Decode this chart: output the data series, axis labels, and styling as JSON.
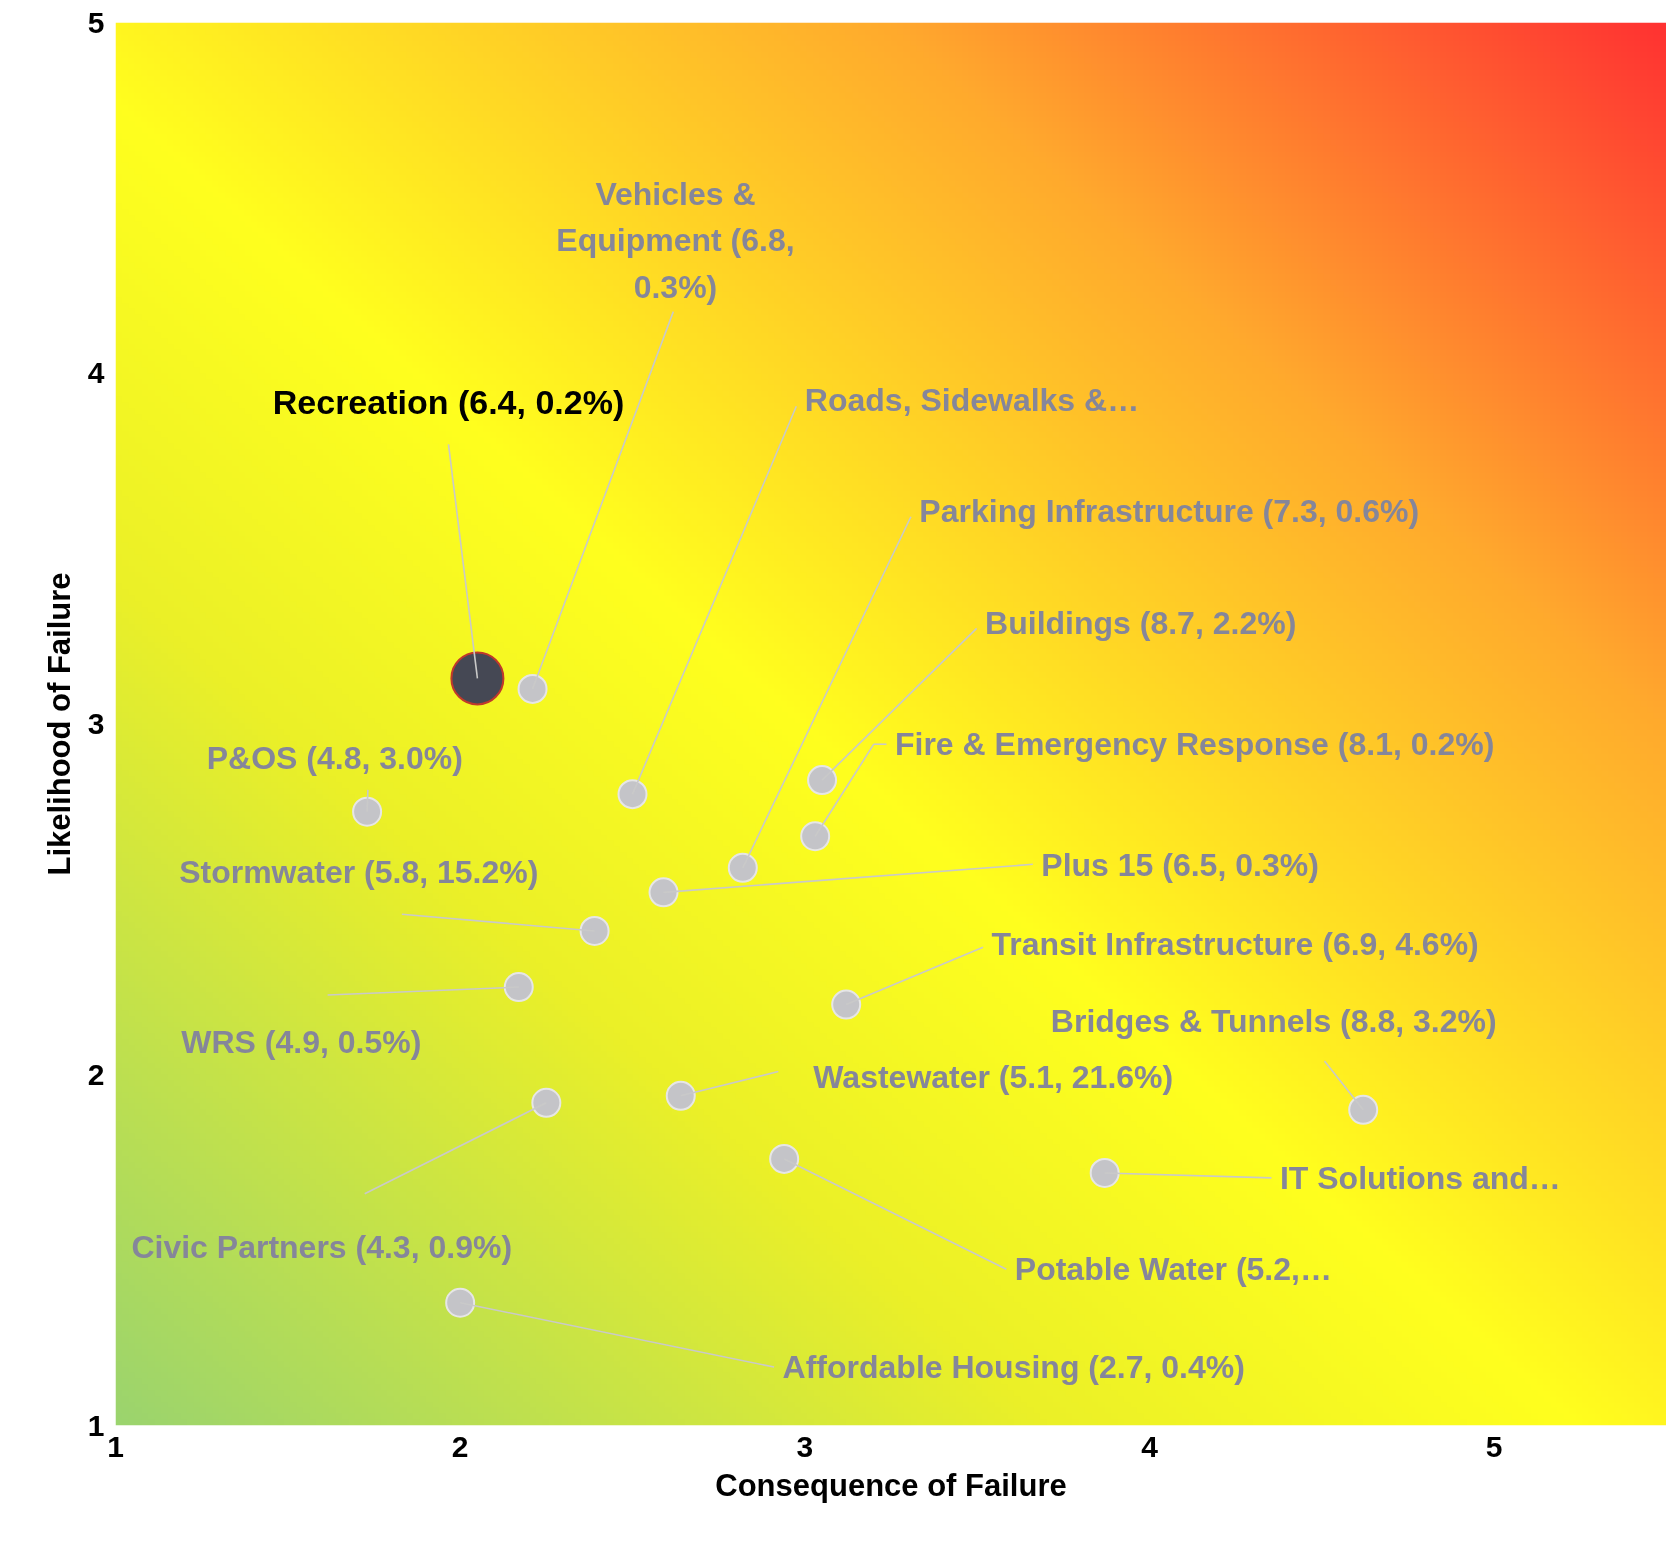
{
  "chart_data": {
    "type": "scatter",
    "xlabel": "Consequence of Failure",
    "ylabel": "Likelihood of Failure",
    "xlim": [
      1,
      5.5
    ],
    "ylim": [
      1,
      5
    ],
    "xticks": [
      1,
      2,
      3,
      4,
      5
    ],
    "yticks": [
      1,
      2,
      3,
      4,
      5
    ],
    "marker": "circle",
    "series": [
      {
        "color": "#c4c4c8",
        "x": [
          2.21,
          2.5,
          2.82,
          3.05,
          3.03,
          2.59,
          2.39,
          2.17,
          1.73,
          3.12,
          2.64,
          2.25,
          2.94,
          3.87,
          4.62,
          2.0
        ],
        "values": [
          3.1,
          2.8,
          2.59,
          2.84,
          2.68,
          2.52,
          2.41,
          2.25,
          2.75,
          2.2,
          1.94,
          1.92,
          1.76,
          1.72,
          1.9,
          1.35
        ]
      },
      {
        "color": "#454854",
        "x": [
          2.05
        ],
        "values": [
          3.13
        ]
      }
    ],
    "annotations": [
      {
        "text": "Recreation (6.4, 0.2%)",
        "x": 2.05,
        "y": 3.13
      },
      {
        "text": "Vehicles &\nEquipment (6.8,\n0.3%)",
        "x": 2.21,
        "y": 3.1
      },
      {
        "text": "Roads, Sidewalks &…",
        "x": 2.5,
        "y": 2.8
      },
      {
        "text": "Parking Infrastructure (7.3, 0.6%)",
        "x": 2.82,
        "y": 2.59
      },
      {
        "text": "Buildings (8.7, 2.2%)",
        "x": 3.05,
        "y": 2.84
      },
      {
        "text": "Fire & Emergency Response  (8.1, 0.2%)",
        "x": 3.03,
        "y": 2.68
      },
      {
        "text": "Plus 15 (6.5, 0.3%)",
        "x": 2.59,
        "y": 2.52
      },
      {
        "text": "Stormwater (5.8, 15.2%)",
        "x": 2.39,
        "y": 2.41
      },
      {
        "text": "WRS (4.9, 0.5%)",
        "x": 2.17,
        "y": 2.25
      },
      {
        "text": "P&OS (4.8, 3.0%)",
        "x": 1.73,
        "y": 2.75
      },
      {
        "text": "Transit Infrastructure (6.9, 4.6%)",
        "x": 3.12,
        "y": 2.2
      },
      {
        "text": "Wastewater (5.1, 21.6%)",
        "x": 2.64,
        "y": 1.94
      },
      {
        "text": "Civic Partners (4.3, 0.9%)",
        "x": 2.25,
        "y": 1.92
      },
      {
        "text": "Potable Water (5.2,…",
        "x": 2.94,
        "y": 1.76
      },
      {
        "text": "IT Solutions and…",
        "x": 3.87,
        "y": 1.72
      },
      {
        "text": "Bridges & Tunnels (8.8, 3.2%)",
        "x": 4.62,
        "y": 1.9
      },
      {
        "text": "Affordable Housing (2.7, 0.4%)",
        "x": 2.0,
        "y": 1.35
      }
    ]
  }
}
